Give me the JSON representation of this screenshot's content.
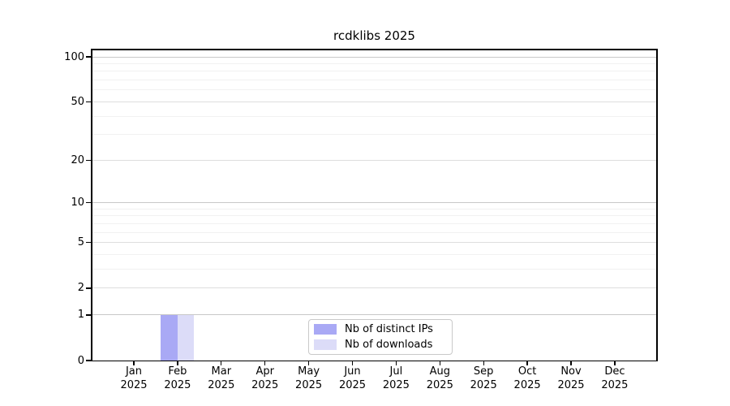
{
  "chart_data": {
    "type": "bar",
    "title": "rcdklibs 2025",
    "x_axis": {
      "months": [
        "Jan",
        "Feb",
        "Mar",
        "Apr",
        "May",
        "Jun",
        "Jul",
        "Aug",
        "Sep",
        "Oct",
        "Nov",
        "Dec"
      ],
      "year": "2025"
    },
    "y_axis": {
      "scale": "log1p",
      "ticks": [
        0,
        1,
        2,
        5,
        10,
        20,
        50,
        100
      ],
      "minor_ticks": [
        3,
        4,
        6,
        7,
        8,
        9,
        30,
        40,
        60,
        70,
        80,
        90
      ],
      "ylim": [
        0,
        113
      ],
      "grid": true
    },
    "series": [
      {
        "name": "Nb of distinct IPs",
        "color": "#a9a9f5",
        "values": [
          0,
          1,
          0,
          0,
          0,
          0,
          0,
          0,
          0,
          0,
          0,
          0
        ]
      },
      {
        "name": "Nb of downloads",
        "color": "#dcdcf8",
        "values": [
          0,
          1,
          0,
          0,
          0,
          0,
          0,
          0,
          0,
          0,
          0,
          0
        ]
      }
    ],
    "legend": {
      "position": "lower center"
    },
    "colors": {
      "grid_major_decade": "#c8c8c8",
      "grid_major": "#dedede",
      "grid_minor": "#f1f1f1",
      "spine": "#000000"
    }
  }
}
